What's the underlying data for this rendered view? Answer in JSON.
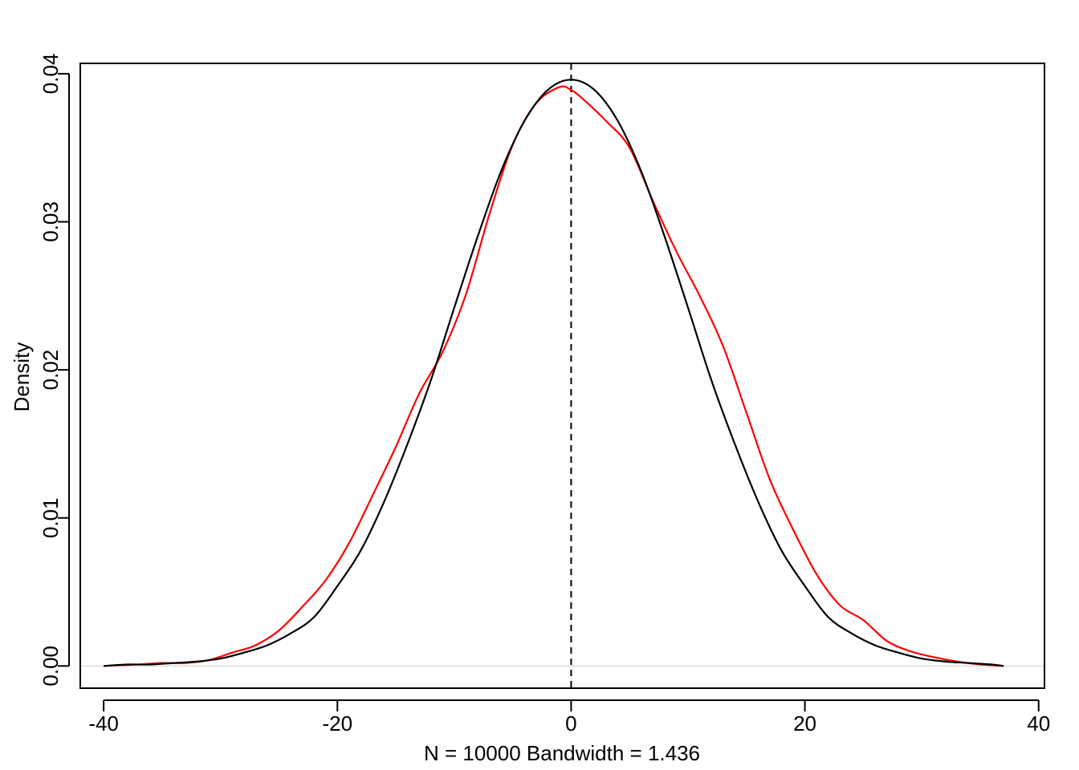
{
  "chart_data": {
    "type": "line",
    "title": "",
    "xlabel": "N = 10000   Bandwidth = 1.436",
    "ylabel": "Density",
    "xlim": [
      -42,
      40.5
    ],
    "ylim": [
      -0.0015,
      0.0407
    ],
    "xticks": [
      -40,
      -20,
      0,
      20,
      40
    ],
    "xtick_labels": [
      "-40",
      "-20",
      "0",
      "20",
      "40"
    ],
    "yticks": [
      0.0,
      0.01,
      0.02,
      0.03,
      0.04
    ],
    "ytick_labels": [
      "0.00",
      "0.01",
      "0.02",
      "0.03",
      "0.04"
    ],
    "grid": false,
    "legend": "none",
    "baseline": {
      "y": 0,
      "color": "#cccccc"
    },
    "reference_line": {
      "x": 0,
      "style": "dashed",
      "color": "#000000"
    },
    "series": [
      {
        "color": "#ff0000",
        "x": [
          -40,
          -37,
          -35,
          -33,
          -31,
          -29,
          -27,
          -25,
          -23,
          -21,
          -19,
          -17,
          -15,
          -13,
          -11,
          -9,
          -7,
          -5,
          -3,
          -1,
          0,
          1,
          3,
          5,
          7,
          9,
          11,
          13,
          15,
          17,
          19,
          21,
          23,
          25,
          27,
          29,
          31,
          33,
          35,
          37
        ],
        "y": [
          0.0,
          0.0001,
          0.0002,
          0.0002,
          0.0004,
          0.0009,
          0.0014,
          0.0024,
          0.004,
          0.0058,
          0.0083,
          0.0115,
          0.0148,
          0.0184,
          0.0212,
          0.0251,
          0.0305,
          0.0352,
          0.038,
          0.0391,
          0.0389,
          0.0383,
          0.0368,
          0.035,
          0.0314,
          0.028,
          0.025,
          0.0216,
          0.0171,
          0.0126,
          0.0092,
          0.0062,
          0.0041,
          0.0031,
          0.0017,
          0.001,
          0.0006,
          0.0003,
          0.0001,
          0.0
        ]
      },
      {
        "color": "#000000",
        "x": [
          -40,
          -38,
          -36,
          -34,
          -32,
          -30,
          -28,
          -26,
          -24,
          -22,
          -20,
          -18,
          -16,
          -14,
          -12,
          -10,
          -8,
          -6,
          -4,
          -2,
          0,
          2,
          4,
          6,
          8,
          10,
          12,
          14,
          16,
          18,
          20,
          22,
          24,
          26,
          28,
          30,
          32,
          34,
          36,
          37
        ],
        "y": [
          0.0,
          0.0001,
          0.0001,
          0.0002,
          0.0003,
          0.0005,
          0.0009,
          0.0014,
          0.0022,
          0.0033,
          0.0054,
          0.0078,
          0.0111,
          0.015,
          0.0193,
          0.0242,
          0.029,
          0.0334,
          0.0368,
          0.0389,
          0.0396,
          0.0389,
          0.0368,
          0.0334,
          0.029,
          0.0242,
          0.0193,
          0.015,
          0.0111,
          0.0078,
          0.0054,
          0.0033,
          0.0022,
          0.0014,
          0.0009,
          0.0005,
          0.0003,
          0.0002,
          0.0001,
          0.0
        ]
      }
    ]
  }
}
